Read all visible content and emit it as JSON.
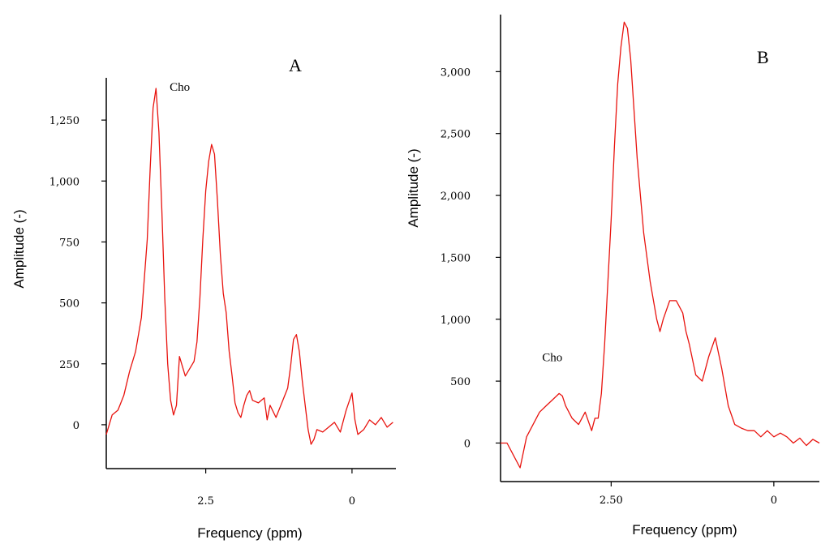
{
  "colors": {
    "line": "#e8130e",
    "axis": "#000000",
    "background": "#ffffff"
  },
  "chart_data": [
    {
      "type": "line",
      "panel_label": "A",
      "xlabel": "Frequency (ppm)",
      "ylabel": "Amplitude (-)",
      "x_reversed": true,
      "xlim": [
        4.2,
        -0.75
      ],
      "ylim": [
        -150,
        1450
      ],
      "x_ticks": [
        {
          "value": 2.5,
          "label": "2.5"
        },
        {
          "value": 0,
          "label": "0"
        }
      ],
      "y_ticks": [
        {
          "value": 1250,
          "label": "1,250"
        },
        {
          "value": 1000,
          "label": "1,000"
        },
        {
          "value": 750,
          "label": "750"
        },
        {
          "value": 500,
          "label": "500"
        },
        {
          "value": 250,
          "label": "250"
        },
        {
          "value": 0,
          "label": "0"
        }
      ],
      "annotations": [
        {
          "text": "Cho",
          "x": 3.2,
          "y": 1390
        }
      ],
      "series": [
        {
          "x": [
            4.2,
            4.1,
            4.0,
            3.9,
            3.8,
            3.7,
            3.6,
            3.5,
            3.45,
            3.4,
            3.35,
            3.3,
            3.25,
            3.2,
            3.15,
            3.1,
            3.05,
            3.0,
            2.95,
            2.9,
            2.85,
            2.8,
            2.7,
            2.65,
            2.6,
            2.55,
            2.5,
            2.45,
            2.4,
            2.35,
            2.3,
            2.25,
            2.2,
            2.15,
            2.1,
            2.05,
            2.0,
            1.95,
            1.9,
            1.85,
            1.8,
            1.75,
            1.7,
            1.6,
            1.5,
            1.45,
            1.4,
            1.3,
            1.2,
            1.1,
            1.05,
            1.0,
            0.95,
            0.9,
            0.85,
            0.8,
            0.75,
            0.7,
            0.65,
            0.6,
            0.5,
            0.4,
            0.3,
            0.2,
            0.1,
            0.0,
            -0.05,
            -0.1,
            -0.2,
            -0.3,
            -0.4,
            -0.5,
            -0.6,
            -0.7
          ],
          "y": [
            -40,
            40,
            60,
            120,
            220,
            300,
            440,
            760,
            1050,
            1300,
            1380,
            1200,
            880,
            520,
            250,
            100,
            40,
            80,
            280,
            240,
            200,
            220,
            260,
            340,
            520,
            760,
            960,
            1080,
            1150,
            1110,
            920,
            700,
            540,
            460,
            300,
            200,
            90,
            50,
            30,
            80,
            120,
            140,
            100,
            90,
            110,
            20,
            80,
            30,
            90,
            150,
            240,
            350,
            370,
            300,
            180,
            80,
            -20,
            -80,
            -60,
            -20,
            -30,
            -10,
            10,
            -30,
            60,
            130,
            20,
            -40,
            -20,
            20,
            0,
            30,
            -10,
            10
          ]
        }
      ]
    },
    {
      "type": "line",
      "panel_label": "B",
      "xlabel": "Frequency (ppm)",
      "ylabel": "Amplitude (-)",
      "x_reversed": true,
      "xlim": [
        4.2,
        -0.7
      ],
      "ylim": [
        -200,
        3500
      ],
      "x_ticks": [
        {
          "value": 2.5,
          "label": "2.50"
        },
        {
          "value": 0,
          "label": "0"
        }
      ],
      "y_ticks": [
        {
          "value": 3000,
          "label": "3,000"
        },
        {
          "value": 2500,
          "label": "2,500"
        },
        {
          "value": 2000,
          "label": "2,000"
        },
        {
          "value": 1500,
          "label": "1,500"
        },
        {
          "value": 1000,
          "label": "1,000"
        },
        {
          "value": 500,
          "label": "500"
        },
        {
          "value": 0,
          "label": "0"
        }
      ],
      "annotations": [
        {
          "text": "Cho",
          "x": 3.25,
          "y": 570
        }
      ],
      "series": [
        {
          "x": [
            4.2,
            4.1,
            4.0,
            3.9,
            3.8,
            3.7,
            3.6,
            3.5,
            3.4,
            3.3,
            3.25,
            3.2,
            3.1,
            3.0,
            2.9,
            2.8,
            2.75,
            2.7,
            2.65,
            2.6,
            2.55,
            2.5,
            2.45,
            2.4,
            2.35,
            2.3,
            2.25,
            2.2,
            2.15,
            2.1,
            2.0,
            1.9,
            1.8,
            1.75,
            1.7,
            1.6,
            1.5,
            1.4,
            1.35,
            1.3,
            1.2,
            1.1,
            1.0,
            0.9,
            0.8,
            0.75,
            0.7,
            0.6,
            0.5,
            0.4,
            0.3,
            0.2,
            0.1,
            0.0,
            -0.1,
            -0.2,
            -0.3,
            -0.4,
            -0.5,
            -0.6,
            -0.7
          ],
          "y": [
            0,
            0,
            -100,
            -200,
            50,
            150,
            250,
            300,
            350,
            400,
            380,
            300,
            200,
            150,
            250,
            100,
            200,
            200,
            400,
            800,
            1300,
            1800,
            2400,
            2900,
            3200,
            3400,
            3350,
            3100,
            2700,
            2300,
            1700,
            1300,
            1000,
            900,
            1000,
            1150,
            1150,
            1050,
            900,
            800,
            550,
            500,
            700,
            850,
            600,
            450,
            300,
            150,
            120,
            100,
            100,
            50,
            100,
            50,
            80,
            50,
            0,
            40,
            -20,
            30,
            0
          ]
        }
      ]
    }
  ]
}
